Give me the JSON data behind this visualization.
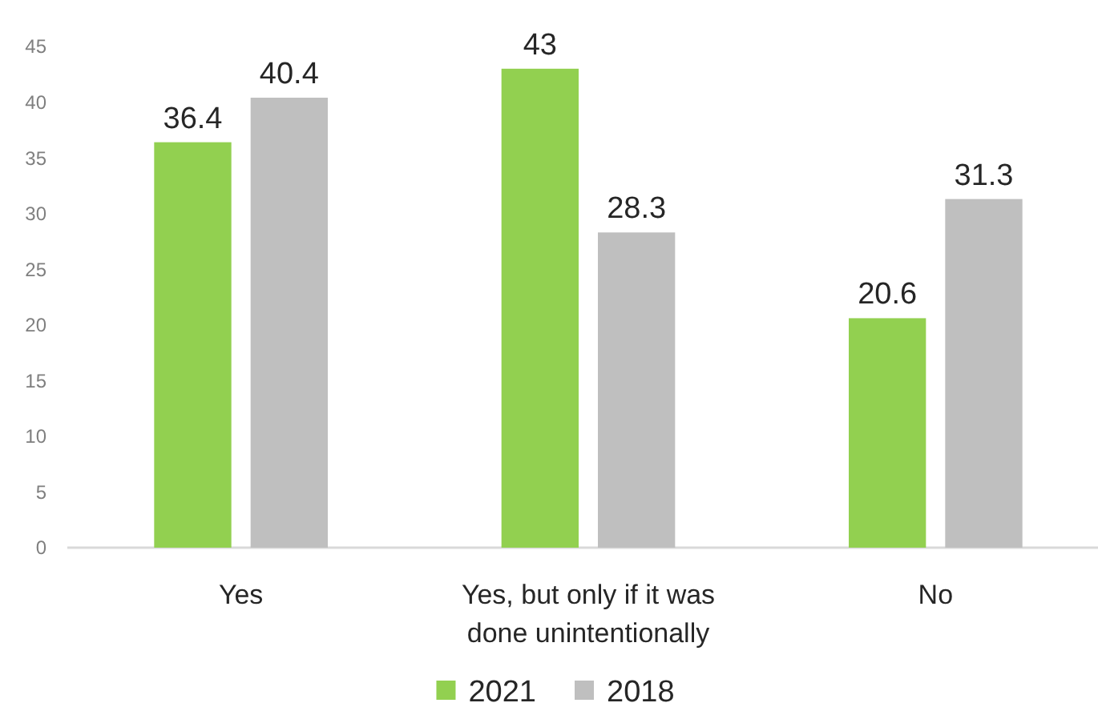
{
  "chart_data": {
    "type": "bar",
    "categories": [
      "Yes",
      "Yes, but only if it was done unintentionally",
      "No"
    ],
    "series": [
      {
        "name": "2021",
        "color": "#92d050",
        "values": [
          36.4,
          43,
          20.6
        ]
      },
      {
        "name": "2018",
        "color": "#bfbfbf",
        "values": [
          40.4,
          28.3,
          31.3
        ]
      }
    ],
    "ylim": [
      0,
      45
    ],
    "yticks": [
      0,
      5,
      10,
      15,
      20,
      25,
      30,
      35,
      40,
      45
    ],
    "data_labels": true,
    "grid": false,
    "legend": "bottom"
  }
}
